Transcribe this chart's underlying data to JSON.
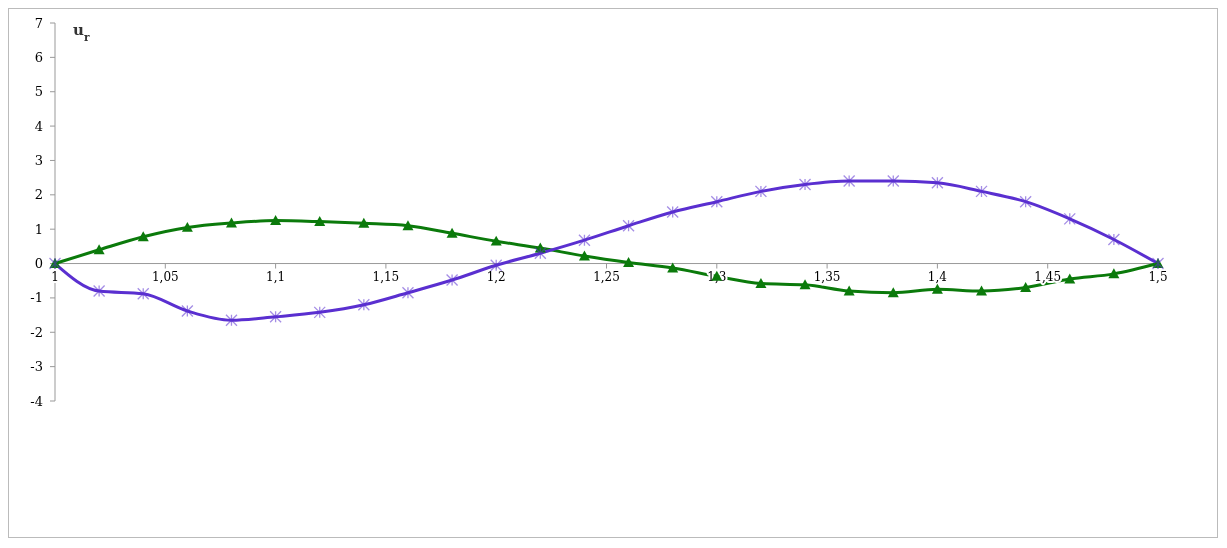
{
  "chart_data": {
    "type": "line",
    "ylabel": "u$_{r}$",
    "x": [
      1,
      1.02,
      1.04,
      1.06,
      1.08,
      1.1,
      1.12,
      1.14,
      1.16,
      1.18,
      1.2,
      1.22,
      1.24,
      1.26,
      1.28,
      1.3,
      1.32,
      1.34,
      1.36,
      1.38,
      1.4,
      1.42,
      1.44,
      1.46,
      1.48,
      1.5
    ],
    "series": [
      {
        "color": "#0b7a0b",
        "marker": "triangle",
        "values": [
          0,
          0.4,
          0.78,
          1.05,
          1.18,
          1.25,
          1.22,
          1.17,
          1.1,
          0.88,
          0.65,
          0.45,
          0.22,
          0.03,
          -0.13,
          -0.37,
          -0.58,
          -0.62,
          -0.8,
          -0.85,
          -0.75,
          -0.8,
          -0.7,
          -0.45,
          -0.3,
          0
        ]
      },
      {
        "color": "#5a2fd0",
        "marker": "cross",
        "values": [
          0,
          -0.8,
          -0.88,
          -1.38,
          -1.65,
          -1.55,
          -1.42,
          -1.2,
          -0.85,
          -0.48,
          -0.05,
          0.3,
          0.68,
          1.1,
          1.5,
          1.8,
          2.1,
          2.3,
          2.4,
          2.4,
          2.35,
          2.1,
          1.8,
          1.3,
          0.7,
          0
        ]
      }
    ],
    "xlim": [
      1,
      1.5
    ],
    "xticks": [
      {
        "value": 1,
        "label": "1"
      },
      {
        "value": 1.05,
        "label": "1,05"
      },
      {
        "value": 1.1,
        "label": "1,1"
      },
      {
        "value": 1.15,
        "label": "1,15"
      },
      {
        "value": 1.2,
        "label": "1,2"
      },
      {
        "value": 1.25,
        "label": "1,25"
      },
      {
        "value": 1.3,
        "label": "1,3"
      },
      {
        "value": 1.35,
        "label": "1,35"
      },
      {
        "value": 1.4,
        "label": "1,4"
      },
      {
        "value": 1.45,
        "label": "1,45"
      },
      {
        "value": 1.5,
        "label": "1,5"
      }
    ],
    "ylim": [
      -4,
      7
    ],
    "yticks": [
      -4,
      -3,
      -2,
      -1,
      0,
      1,
      2,
      3,
      4,
      5,
      6,
      7
    ],
    "line_style": "solid",
    "grid": false
  }
}
